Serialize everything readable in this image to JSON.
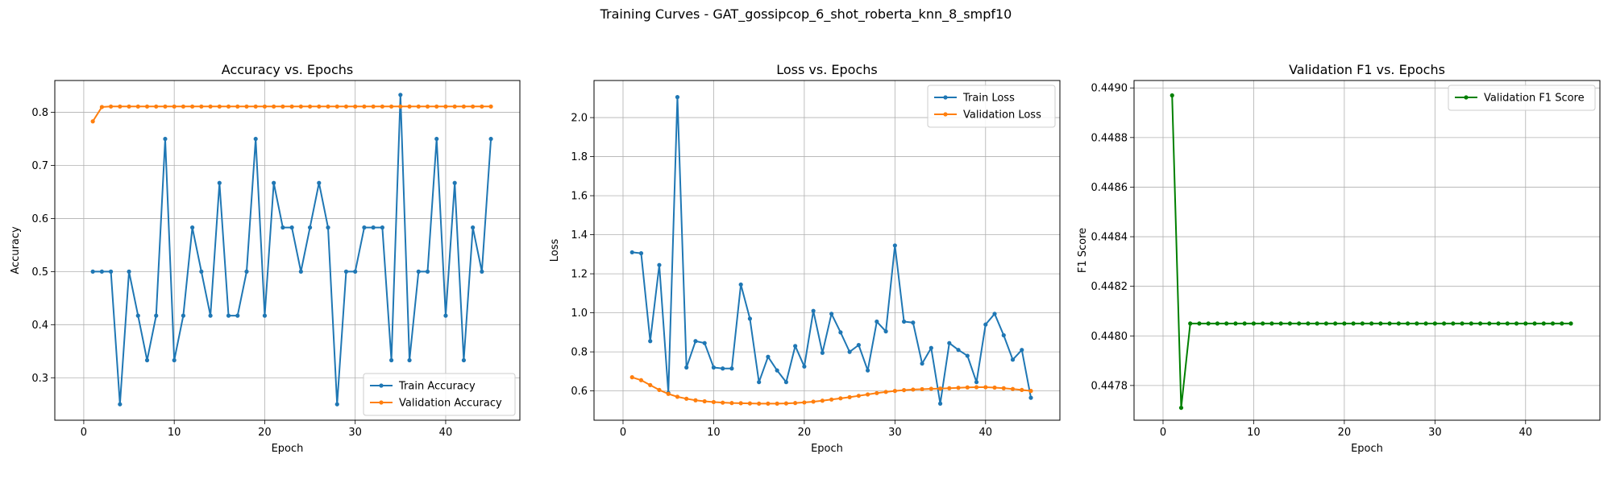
{
  "figure": {
    "suptitle": "Training Curves - GAT_gossipcop_6_shot_roberta_knn_8_smpf10"
  },
  "chart_data": [
    {
      "type": "line",
      "title": "Accuracy vs. Epochs",
      "xlabel": "Epoch",
      "ylabel": "Accuracy",
      "xlim": [
        -3.2,
        48.2
      ],
      "ylim": [
        0.22,
        0.86
      ],
      "xticks": [
        0,
        10,
        20,
        30,
        40
      ],
      "xtick_labels": [
        "0",
        "10",
        "20",
        "30",
        "40"
      ],
      "yticks": [
        0.3,
        0.4,
        0.5,
        0.6,
        0.7,
        0.8
      ],
      "ytick_labels": [
        "0.3",
        "0.4",
        "0.5",
        "0.6",
        "0.7",
        "0.8"
      ],
      "grid": true,
      "legend_position": "lower-right",
      "x": [
        1,
        2,
        3,
        4,
        5,
        6,
        7,
        8,
        9,
        10,
        11,
        12,
        13,
        14,
        15,
        16,
        17,
        18,
        19,
        20,
        21,
        22,
        23,
        24,
        25,
        26,
        27,
        28,
        29,
        30,
        31,
        32,
        33,
        34,
        35,
        36,
        37,
        38,
        39,
        40,
        41,
        42,
        43,
        44,
        45
      ],
      "series": [
        {
          "name": "Train Accuracy",
          "color": "#1f77b4",
          "values": [
            0.5,
            0.5,
            0.5,
            0.25,
            0.5,
            0.417,
            0.333,
            0.417,
            0.75,
            0.333,
            0.417,
            0.583,
            0.5,
            0.417,
            0.667,
            0.417,
            0.417,
            0.5,
            0.75,
            0.417,
            0.667,
            0.583,
            0.583,
            0.5,
            0.583,
            0.667,
            0.583,
            0.25,
            0.5,
            0.5,
            0.583,
            0.583,
            0.583,
            0.333,
            0.833,
            0.333,
            0.5,
            0.5,
            0.75,
            0.417,
            0.667,
            0.333,
            0.583,
            0.5,
            0.75
          ]
        },
        {
          "name": "Validation Accuracy",
          "color": "#ff7f0e",
          "values": [
            0.783,
            0.81,
            0.811,
            0.811,
            0.811,
            0.811,
            0.811,
            0.811,
            0.811,
            0.811,
            0.811,
            0.811,
            0.811,
            0.811,
            0.811,
            0.811,
            0.811,
            0.811,
            0.811,
            0.811,
            0.811,
            0.811,
            0.811,
            0.811,
            0.811,
            0.811,
            0.811,
            0.811,
            0.811,
            0.811,
            0.811,
            0.811,
            0.811,
            0.811,
            0.811,
            0.811,
            0.811,
            0.811,
            0.811,
            0.811,
            0.811,
            0.811,
            0.811,
            0.811,
            0.811
          ]
        }
      ]
    },
    {
      "type": "line",
      "title": "Loss vs. Epochs",
      "xlabel": "Epoch",
      "ylabel": "Loss",
      "xlim": [
        -3.2,
        48.2
      ],
      "ylim": [
        0.45,
        2.19
      ],
      "xticks": [
        0,
        10,
        20,
        30,
        40
      ],
      "xtick_labels": [
        "0",
        "10",
        "20",
        "30",
        "40"
      ],
      "yticks": [
        0.6,
        0.8,
        1.0,
        1.2,
        1.4,
        1.6,
        1.8,
        2.0
      ],
      "ytick_labels": [
        "0.6",
        "0.8",
        "1.0",
        "1.2",
        "1.4",
        "1.6",
        "1.8",
        "2.0"
      ],
      "grid": true,
      "legend_position": "upper-right",
      "x": [
        1,
        2,
        3,
        4,
        5,
        6,
        7,
        8,
        9,
        10,
        11,
        12,
        13,
        14,
        15,
        16,
        17,
        18,
        19,
        20,
        21,
        22,
        23,
        24,
        25,
        26,
        27,
        28,
        29,
        30,
        31,
        32,
        33,
        34,
        35,
        36,
        37,
        38,
        39,
        40,
        41,
        42,
        43,
        44,
        45
      ],
      "series": [
        {
          "name": "Train Loss",
          "color": "#1f77b4",
          "values": [
            1.31,
            1.305,
            0.855,
            1.245,
            0.59,
            2.105,
            0.72,
            0.855,
            0.845,
            0.72,
            0.715,
            0.715,
            1.145,
            0.97,
            0.645,
            0.775,
            0.705,
            0.645,
            0.83,
            0.725,
            1.01,
            0.795,
            0.995,
            0.9,
            0.8,
            0.835,
            0.705,
            0.955,
            0.905,
            1.345,
            0.955,
            0.95,
            0.74,
            0.82,
            0.535,
            0.845,
            0.81,
            0.78,
            0.645,
            0.94,
            0.995,
            0.885,
            0.76,
            0.81,
            0.565
          ]
        },
        {
          "name": "Validation Loss",
          "color": "#ff7f0e",
          "values": [
            0.67,
            0.655,
            0.63,
            0.605,
            0.585,
            0.57,
            0.56,
            0.552,
            0.547,
            0.543,
            0.54,
            0.538,
            0.537,
            0.536,
            0.535,
            0.535,
            0.535,
            0.536,
            0.538,
            0.541,
            0.545,
            0.55,
            0.556,
            0.562,
            0.568,
            0.575,
            0.582,
            0.589,
            0.595,
            0.6,
            0.604,
            0.607,
            0.609,
            0.611,
            0.612,
            0.614,
            0.616,
            0.618,
            0.619,
            0.619,
            0.617,
            0.614,
            0.61,
            0.605,
            0.6
          ]
        }
      ]
    },
    {
      "type": "line",
      "title": "Validation F1 vs. Epochs",
      "xlabel": "Epoch",
      "ylabel": "F1 Score",
      "xlim": [
        -3.2,
        48.2
      ],
      "ylim": [
        0.44766,
        0.44903
      ],
      "xticks": [
        0,
        10,
        20,
        30,
        40
      ],
      "xtick_labels": [
        "0",
        "10",
        "20",
        "30",
        "40"
      ],
      "yticks": [
        0.4478,
        0.448,
        0.4482,
        0.4484,
        0.4486,
        0.4488,
        0.449
      ],
      "ytick_labels": [
        "0.4478",
        "0.4480",
        "0.4482",
        "0.4484",
        "0.4486",
        "0.4488",
        "0.4490"
      ],
      "grid": true,
      "legend_position": "upper-right",
      "x": [
        1,
        2,
        3,
        4,
        5,
        6,
        7,
        8,
        9,
        10,
        11,
        12,
        13,
        14,
        15,
        16,
        17,
        18,
        19,
        20,
        21,
        22,
        23,
        24,
        25,
        26,
        27,
        28,
        29,
        30,
        31,
        32,
        33,
        34,
        35,
        36,
        37,
        38,
        39,
        40,
        41,
        42,
        43,
        44,
        45
      ],
      "series": [
        {
          "name": "Validation F1 Score",
          "color": "#008000",
          "values": [
            0.44897,
            0.44771,
            0.44805,
            0.44805,
            0.44805,
            0.44805,
            0.44805,
            0.44805,
            0.44805,
            0.44805,
            0.44805,
            0.44805,
            0.44805,
            0.44805,
            0.44805,
            0.44805,
            0.44805,
            0.44805,
            0.44805,
            0.44805,
            0.44805,
            0.44805,
            0.44805,
            0.44805,
            0.44805,
            0.44805,
            0.44805,
            0.44805,
            0.44805,
            0.44805,
            0.44805,
            0.44805,
            0.44805,
            0.44805,
            0.44805,
            0.44805,
            0.44805,
            0.44805,
            0.44805,
            0.44805,
            0.44805,
            0.44805,
            0.44805,
            0.44805,
            0.44805
          ]
        }
      ]
    }
  ]
}
